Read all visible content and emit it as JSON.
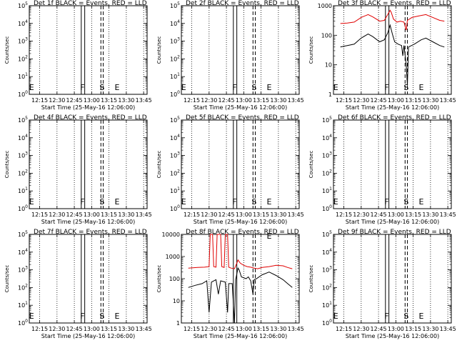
{
  "figure": {
    "colors": {
      "background": "#ffffff",
      "axes": "#000000",
      "events": "#000000",
      "lld": "#e00000"
    }
  },
  "chart_data": [
    {
      "type": "line",
      "title": "Det 1f BLACK = Events, RED = LLD",
      "ylabel": "Counts/sec",
      "xlabel": "Start Time (25-May-16 12:06:00)",
      "xticks": [
        "12:15",
        "12:30",
        "12:45",
        "13:00",
        "13:15",
        "13:30",
        "13:45"
      ],
      "yscale": "log",
      "yticks": [
        "10^0",
        "10^1",
        "10^2",
        "10^3",
        "10^4",
        "10^5"
      ],
      "markers": [
        {
          "label": "E",
          "x": "12:08"
        },
        {
          "label": "F",
          "x": "12:52"
        },
        {
          "label": "S",
          "x": "13:09"
        },
        {
          "label": "E",
          "x": "13:22"
        }
      ],
      "series": []
    },
    {
      "type": "line",
      "title": "Det 2f BLACK = Events, RED = LLD",
      "ylabel": "Counts/sec",
      "xlabel": "Start Time (25-May-16 12:06:00)",
      "xticks": [
        "12:15",
        "12:30",
        "12:45",
        "13:00",
        "13:15",
        "13:30",
        "13:45"
      ],
      "yscale": "log",
      "yticks": [
        "10^0",
        "10^1",
        "10^2",
        "10^3",
        "10^4",
        "10^5"
      ],
      "markers": [
        {
          "label": "E",
          "x": "12:08"
        },
        {
          "label": "F",
          "x": "12:52"
        },
        {
          "label": "S",
          "x": "13:09"
        },
        {
          "label": "E",
          "x": "13:22"
        }
      ],
      "series": []
    },
    {
      "type": "line",
      "title": "Det 3f BLACK = Events, RED = LLD",
      "ylabel": "Counts/sec",
      "xlabel": "Start Time (25-May-16 12:06:00)",
      "xticks": [
        "12:15",
        "12:30",
        "12:45",
        "13:00",
        "13:15",
        "13:30",
        "13:45"
      ],
      "yscale": "log",
      "yticks": [
        "1",
        "10",
        "100",
        "1000"
      ],
      "ylim": [
        1,
        1000
      ],
      "markers": [
        {
          "label": "E",
          "x": "12:08"
        },
        {
          "label": "F",
          "x": "12:52"
        },
        {
          "label": "S",
          "x": "13:09"
        },
        {
          "label": "E",
          "x": "13:22"
        }
      ],
      "series": [
        {
          "color": "red",
          "points": [
            [
              6,
              250
            ],
            [
              12,
              260
            ],
            [
              18,
              280
            ],
            [
              24,
              400
            ],
            [
              30,
              500
            ],
            [
              34,
              420
            ],
            [
              40,
              300
            ],
            [
              44,
              320
            ],
            [
              47,
              500
            ],
            [
              49,
              700
            ],
            [
              50,
              600
            ],
            [
              52,
              350
            ],
            [
              55,
              280
            ],
            [
              58,
              300
            ],
            [
              61,
              280
            ],
            [
              63,
              150
            ],
            [
              64,
              320
            ],
            [
              68,
              400
            ],
            [
              74,
              450
            ],
            [
              80,
              500
            ],
            [
              86,
              400
            ],
            [
              92,
              320
            ],
            [
              96,
              300
            ]
          ]
        },
        {
          "color": "black",
          "points": [
            [
              6,
              40
            ],
            [
              12,
              45
            ],
            [
              18,
              50
            ],
            [
              24,
              80
            ],
            [
              30,
              110
            ],
            [
              34,
              90
            ],
            [
              40,
              60
            ],
            [
              44,
              70
            ],
            [
              47,
              120
            ],
            [
              49,
              220
            ],
            [
              51,
              110
            ],
            [
              53,
              60
            ],
            [
              56,
              50
            ],
            [
              59,
              45
            ],
            [
              60,
              20
            ],
            [
              61,
              45
            ],
            [
              63,
              10
            ],
            [
              64,
              2
            ],
            [
              65,
              40
            ],
            [
              70,
              50
            ],
            [
              76,
              70
            ],
            [
              80,
              80
            ],
            [
              86,
              60
            ],
            [
              92,
              45
            ],
            [
              96,
              40
            ]
          ]
        }
      ]
    },
    {
      "type": "line",
      "title": "Det 4f BLACK = Events, RED = LLD",
      "ylabel": "Counts/sec",
      "xlabel": "Start Time (25-May-16 12:06:00)",
      "xticks": [
        "12:15",
        "12:30",
        "12:45",
        "13:00",
        "13:15",
        "13:30",
        "13:45"
      ],
      "yscale": "log",
      "yticks": [
        "10^0",
        "10^1",
        "10^2",
        "10^3",
        "10^4",
        "10^5"
      ],
      "markers": [
        {
          "label": "E",
          "x": "12:08"
        },
        {
          "label": "F",
          "x": "12:52"
        },
        {
          "label": "S",
          "x": "13:09"
        },
        {
          "label": "E",
          "x": "13:22"
        }
      ],
      "series": []
    },
    {
      "type": "line",
      "title": "Det 5f BLACK = Events, RED = LLD",
      "ylabel": "Counts/sec",
      "xlabel": "Start Time (25-May-16 12:06:00)",
      "xticks": [
        "12:15",
        "12:30",
        "12:45",
        "13:00",
        "13:15",
        "13:30",
        "13:45"
      ],
      "yscale": "log",
      "yticks": [
        "10^0",
        "10^1",
        "10^2",
        "10^3",
        "10^4",
        "10^5"
      ],
      "markers": [
        {
          "label": "E",
          "x": "12:08"
        },
        {
          "label": "F",
          "x": "12:52"
        },
        {
          "label": "S",
          "x": "13:09"
        },
        {
          "label": "E",
          "x": "13:22"
        }
      ],
      "series": []
    },
    {
      "type": "line",
      "title": "Det 6f BLACK = Events, RED = LLD",
      "ylabel": "Counts/sec",
      "xlabel": "Start Time (25-May-16 12:06:00)",
      "xticks": [
        "12:15",
        "12:30",
        "12:45",
        "13:00",
        "13:15",
        "13:30",
        "13:45"
      ],
      "yscale": "log",
      "yticks": [
        "10^0",
        "10^1",
        "10^2",
        "10^3",
        "10^4",
        "10^5"
      ],
      "markers": [
        {
          "label": "E",
          "x": "12:08"
        },
        {
          "label": "F",
          "x": "12:52"
        },
        {
          "label": "S",
          "x": "13:09"
        },
        {
          "label": "E",
          "x": "13:22"
        }
      ],
      "series": []
    },
    {
      "type": "line",
      "title": "Det 7f BLACK = Events, RED = LLD",
      "ylabel": "Counts/sec",
      "xlabel": "Start Time (25-May-16 12:06:00)",
      "xticks": [
        "12:15",
        "12:30",
        "12:45",
        "13:00",
        "13:15",
        "13:30",
        "13:45"
      ],
      "yscale": "log",
      "yticks": [
        "10^0",
        "10^1",
        "10^2",
        "10^3",
        "10^4",
        "10^5"
      ],
      "markers": [
        {
          "label": "E",
          "x": "12:08"
        },
        {
          "label": "F",
          "x": "12:52"
        },
        {
          "label": "S",
          "x": "13:09"
        },
        {
          "label": "E",
          "x": "13:22"
        }
      ],
      "series": []
    },
    {
      "type": "line",
      "title": "Det 8f BLACK = Events, RED = LLD",
      "ylabel": "Counts/sec",
      "xlabel": "Start Time (25-May-16 12:06:00)",
      "xticks": [
        "12:15",
        "12:30",
        "12:45",
        "13:00",
        "13:15",
        "13:30",
        "13:45"
      ],
      "yscale": "log",
      "yticks": [
        "1",
        "10",
        "100",
        "1000",
        "10000"
      ],
      "ylim": [
        1,
        10000
      ],
      "markers": [
        {
          "label": "E",
          "x": "13:22"
        }
      ],
      "series": [
        {
          "color": "red",
          "points": [
            [
              6,
              300
            ],
            [
              14,
              320
            ],
            [
              20,
              330
            ],
            [
              24,
              350
            ],
            [
              25,
              10000
            ],
            [
              27,
              10000
            ],
            [
              28,
              350
            ],
            [
              30,
              330
            ],
            [
              31,
              10000
            ],
            [
              34,
              10000
            ],
            [
              35,
              350
            ],
            [
              37,
              320
            ],
            [
              38,
              10000
            ],
            [
              40,
              10000
            ],
            [
              41,
              330
            ],
            [
              43,
              300
            ],
            [
              46,
              280
            ],
            [
              48,
              500
            ],
            [
              49,
              700
            ],
            [
              51,
              500
            ],
            [
              54,
              400
            ],
            [
              57,
              350
            ],
            [
              60,
              330
            ],
            [
              63,
              300
            ],
            [
              66,
              280
            ],
            [
              70,
              320
            ],
            [
              76,
              350
            ],
            [
              82,
              400
            ],
            [
              88,
              380
            ],
            [
              92,
              320
            ],
            [
              96,
              280
            ]
          ]
        },
        {
          "color": "black",
          "points": [
            [
              6,
              40
            ],
            [
              12,
              50
            ],
            [
              18,
              60
            ],
            [
              22,
              80
            ],
            [
              24,
              3
            ],
            [
              26,
              70
            ],
            [
              30,
              90
            ],
            [
              32,
              20
            ],
            [
              34,
              80
            ],
            [
              38,
              70
            ],
            [
              40,
              3
            ],
            [
              41,
              60
            ],
            [
              44,
              60
            ],
            [
              46,
              1
            ],
            [
              47,
              90
            ],
            [
              49,
              300
            ],
            [
              50,
              250
            ],
            [
              52,
              120
            ],
            [
              56,
              100
            ],
            [
              58,
              120
            ],
            [
              60,
              80
            ],
            [
              62,
              20
            ],
            [
              63,
              90
            ],
            [
              65,
              100
            ],
            [
              70,
              150
            ],
            [
              76,
              200
            ],
            [
              82,
              140
            ],
            [
              88,
              90
            ],
            [
              92,
              60
            ],
            [
              96,
              40
            ]
          ]
        }
      ]
    },
    {
      "type": "line",
      "title": "Det 9f BLACK = Events, RED = LLD",
      "ylabel": "Counts/sec",
      "xlabel": "Start Time (25-May-16 12:06:00)",
      "xticks": [
        "12:15",
        "12:30",
        "12:45",
        "13:00",
        "13:15",
        "13:30",
        "13:45"
      ],
      "yscale": "log",
      "yticks": [
        "10^0",
        "10^1",
        "10^2",
        "10^3",
        "10^4",
        "10^5"
      ],
      "markers": [
        {
          "label": "E",
          "x": "12:08"
        },
        {
          "label": "F",
          "x": "12:52"
        },
        {
          "label": "S",
          "x": "13:09"
        },
        {
          "label": "E",
          "x": "13:22"
        }
      ],
      "series": []
    }
  ]
}
